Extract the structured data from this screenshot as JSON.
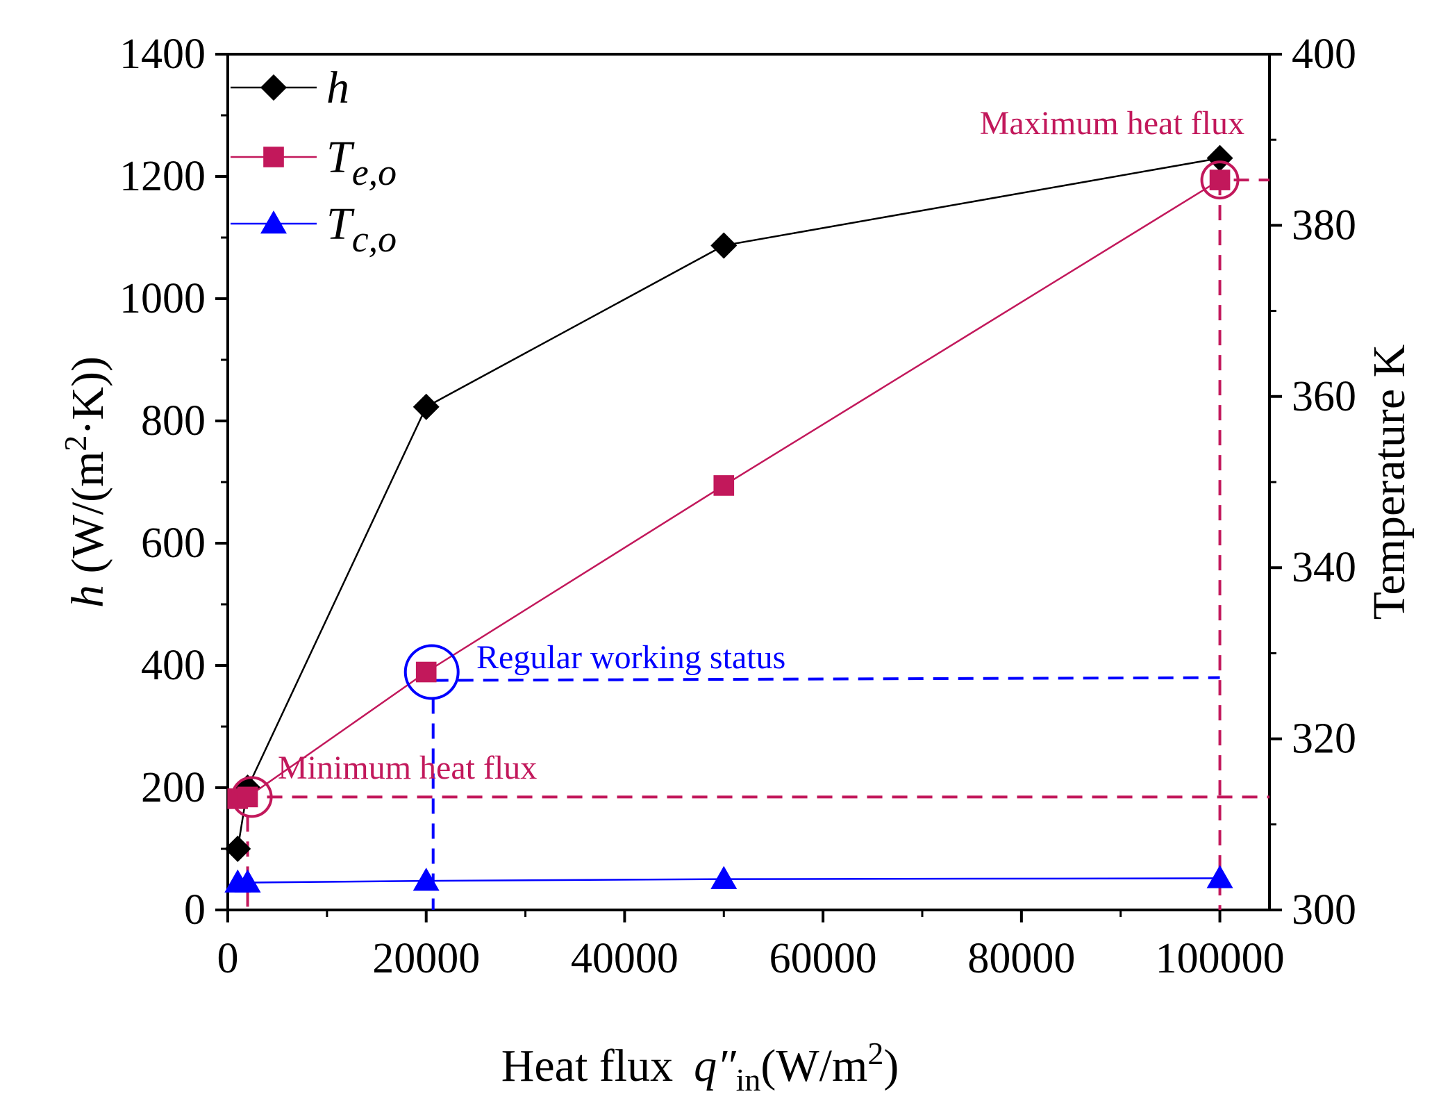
{
  "chart_data": {
    "type": "line",
    "x": [
      1000,
      2000,
      20000,
      50000,
      100000
    ],
    "xlim": [
      0,
      105000
    ],
    "xticks": [
      "0",
      "20000",
      "40000",
      "60000",
      "80000",
      "100000"
    ],
    "xlabel": {
      "main": "Heat flux",
      "var": "q″",
      "sub": "in",
      "unit_open": "(W/m",
      "sup": "2",
      "unit_close": ")"
    },
    "ylabel_left": {
      "var": "h",
      "open": " (W/(m",
      "sup": "2",
      "close": "·K))"
    },
    "ylabel_right": "Temperature K",
    "ylim_left": [
      0,
      1400
    ],
    "ylim_right": [
      300,
      400
    ],
    "yticks_left": [
      "0",
      "200",
      "400",
      "600",
      "800",
      "1000",
      "1200",
      "1400"
    ],
    "yticks_right": [
      "300",
      "320",
      "340",
      "360",
      "380",
      "400"
    ],
    "series": [
      {
        "name": "h",
        "base": "h",
        "sub": "",
        "axis": "left",
        "marker": "diamond",
        "color": "#000000",
        "values": [
          100,
          200,
          823,
          1087,
          1230
        ]
      },
      {
        "name": "Te,o",
        "base": "T",
        "sub": "e,o",
        "axis": "right",
        "marker": "square",
        "color": "#c2185b",
        "values": [
          313,
          313.2,
          327.8,
          349.6,
          385.3
        ]
      },
      {
        "name": "Tc,o",
        "base": "T",
        "sub": "c,o",
        "axis": "right",
        "marker": "triangle",
        "color": "#0000ff",
        "values": [
          303.2,
          303.2,
          303.4,
          303.6,
          303.7
        ]
      }
    ],
    "annotations": [
      {
        "text": "Maximum heat flux",
        "color": "#c2185b",
        "x": 100000,
        "y": 385.3
      },
      {
        "text": "Regular working status",
        "color": "#0000ff",
        "x": 20700,
        "y": 327.8
      },
      {
        "text": "Minimum heat flux",
        "color": "#c2185b",
        "x": 2000,
        "y": 313.2
      }
    ]
  }
}
